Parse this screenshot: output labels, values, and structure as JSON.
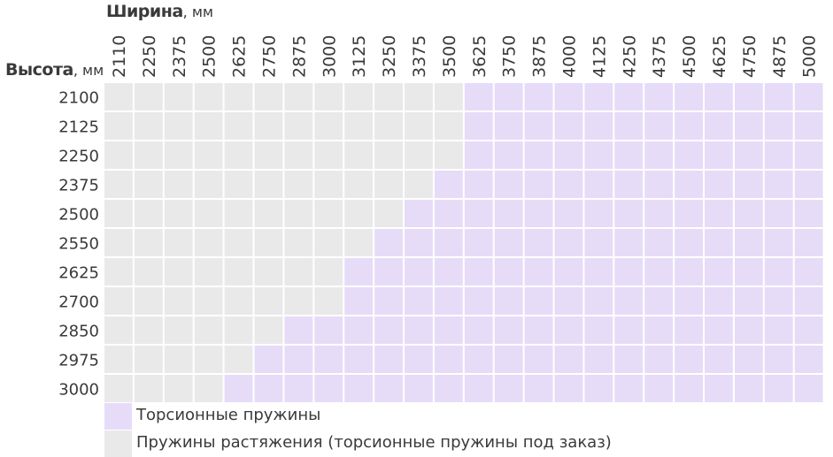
{
  "titles": {
    "width_bold": "Ширина",
    "width_unit": ", мм",
    "height_bold": "Высота",
    "height_unit": ", мм"
  },
  "colors": {
    "torsion": "#e6dcf8",
    "extension": "#e8e9e8",
    "grid_line": "#ffffff"
  },
  "chart_data": {
    "type": "heatmap",
    "x": [
      2110,
      2250,
      2375,
      2500,
      2625,
      2750,
      2875,
      3000,
      3125,
      3250,
      3375,
      3500,
      3625,
      3750,
      3875,
      4000,
      4125,
      4250,
      4375,
      4500,
      4625,
      4750,
      4875,
      5000
    ],
    "y": [
      2100,
      2125,
      2250,
      2375,
      2500,
      2550,
      2625,
      2700,
      2850,
      2975,
      3000
    ],
    "xlabel": "Ширина, мм",
    "ylabel": "Высота, мм",
    "min_torsion_width_by_height": [
      {
        "height": 2100,
        "min_width": 3625
      },
      {
        "height": 2125,
        "min_width": 3625
      },
      {
        "height": 2250,
        "min_width": 3625
      },
      {
        "height": 2375,
        "min_width": 3500
      },
      {
        "height": 2500,
        "min_width": 3375
      },
      {
        "height": 2550,
        "min_width": 3250
      },
      {
        "height": 2625,
        "min_width": 3125
      },
      {
        "height": 2700,
        "min_width": 3125
      },
      {
        "height": 2850,
        "min_width": 2875
      },
      {
        "height": 2975,
        "min_width": 2750
      },
      {
        "height": 3000,
        "min_width": 2625
      }
    ],
    "legend": [
      {
        "key": "torsion",
        "label": "Торсионные пружины"
      },
      {
        "key": "extension",
        "label": "Пружины растяжения (торсионные пружины под заказ)"
      }
    ]
  }
}
